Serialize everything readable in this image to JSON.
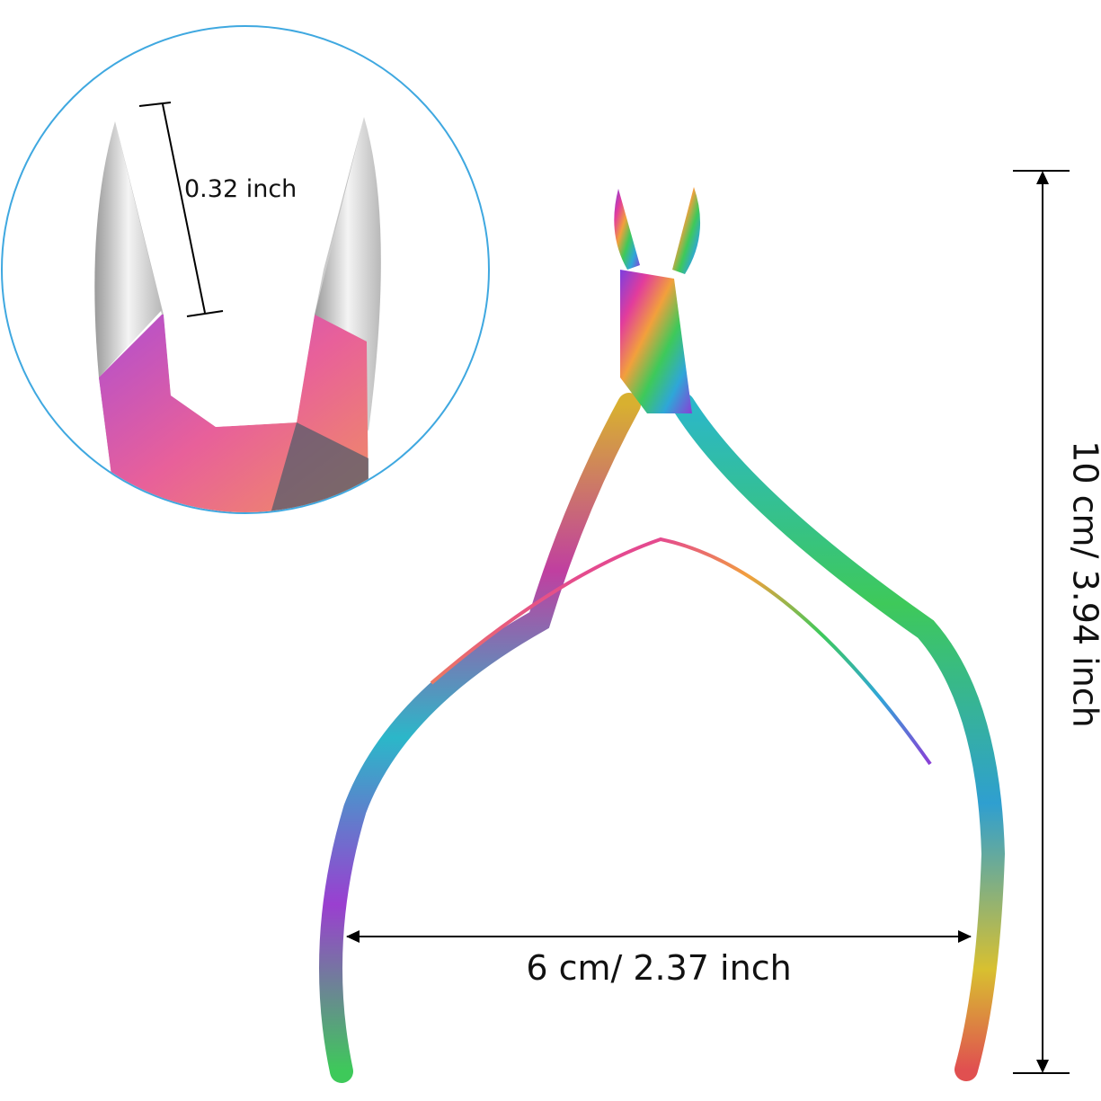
{
  "annotations": {
    "jaw_opening": "0.32 inch",
    "height": "10 cm/ 3.94 inch",
    "width": "6 cm/ 2.37 inch"
  }
}
